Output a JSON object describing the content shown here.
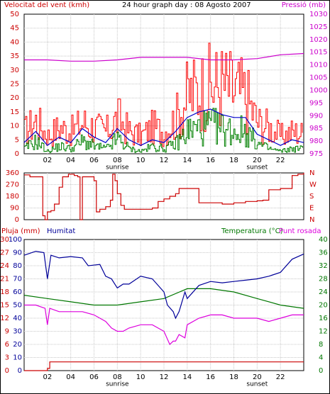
{
  "chart_data": [
    {
      "type": "line",
      "panel": "wind-pressure",
      "title": "24 hour graph day : 08 Agosto 2007",
      "left_axis_title": "Velocitat del vent (kmh)",
      "right_axis_title": "Pressió (mb)",
      "ylim_left": [
        0,
        50
      ],
      "ylim_right": [
        975,
        1030
      ],
      "yticks_left": [
        "0",
        "5",
        "10",
        "15",
        "20",
        "25",
        "30",
        "35",
        "40",
        "45",
        "50"
      ],
      "yticks_right": [
        "975",
        "980",
        "985",
        "990",
        "995",
        "1000",
        "1005",
        "1010",
        "1015",
        "1020",
        "1025",
        "1030"
      ],
      "xlim": [
        0,
        24
      ],
      "xticks": [
        "02",
        "04",
        "06",
        "08",
        "10",
        "12",
        "14",
        "16",
        "18",
        "20",
        "22"
      ],
      "markers": [
        "sunrise",
        "sunset"
      ],
      "grid": true,
      "colors": {
        "gust": "#ff0000",
        "average": "#0000cc",
        "wind": "#008000",
        "pressure": "#cc00cc"
      },
      "series": [
        {
          "name": "",
          "axis": "right",
          "x": [
            0,
            2,
            4,
            6,
            8,
            10,
            12,
            14,
            16,
            18,
            20,
            22,
            24
          ],
          "y": [
            1012,
            1012,
            1011.5,
            1011.5,
            1012,
            1013,
            1013,
            1013,
            1012,
            1012,
            1012.5,
            1014,
            1014.5
          ]
        },
        {
          "name": "",
          "axis": "left",
          "x": [
            0,
            1,
            2,
            3,
            4,
            5,
            6,
            7,
            8,
            9,
            10,
            11,
            12,
            13,
            14,
            15,
            16,
            17,
            18,
            19,
            20,
            21,
            22,
            23,
            24
          ],
          "y": [
            10,
            15,
            8,
            12,
            10,
            14,
            12,
            10,
            16,
            10,
            8,
            12,
            10,
            16,
            26,
            29,
            30,
            31,
            28,
            26,
            14,
            12,
            8,
            10,
            9
          ]
        },
        {
          "name": "",
          "axis": "left",
          "x": [
            0,
            1,
            2,
            3,
            4,
            5,
            6,
            7,
            8,
            9,
            10,
            11,
            12,
            13,
            14,
            15,
            16,
            17,
            18,
            19,
            20,
            21,
            22,
            23,
            24
          ],
          "y": [
            4,
            8,
            3,
            6,
            4,
            9,
            6,
            4,
            9,
            5,
            3,
            5,
            4,
            8,
            13,
            15,
            16,
            14,
            13,
            13,
            7,
            5,
            3,
            5,
            4
          ]
        },
        {
          "name": "",
          "axis": "left",
          "x": [
            0,
            1,
            2,
            3,
            4,
            5,
            6,
            7,
            8,
            9,
            10,
            11,
            12,
            13,
            14,
            15,
            16,
            17,
            18,
            19,
            20,
            21,
            22,
            23,
            24
          ],
          "y": [
            2,
            5,
            1,
            3,
            2,
            5,
            3,
            2,
            6,
            2,
            1,
            3,
            2,
            4,
            9,
            10,
            11,
            10,
            9,
            9,
            4,
            2,
            1,
            2,
            2
          ]
        }
      ]
    },
    {
      "type": "line",
      "panel": "wind-direction",
      "ylim": [
        0,
        360
      ],
      "yticks_left": [
        "0",
        "90",
        "180",
        "270",
        "360"
      ],
      "yticks_right": [
        "N",
        "E",
        "S",
        "W",
        "N"
      ],
      "xlim": [
        0,
        24
      ],
      "grid": true,
      "colors": {
        "direction": "#cc0000"
      },
      "series": [
        {
          "name": "",
          "x": [
            0,
            0.5,
            1,
            1.6,
            1.8,
            2,
            2.3,
            2.6,
            3,
            3.3,
            3.8,
            4.3,
            4.6,
            4.8,
            5,
            5.5,
            6,
            6.2,
            6.5,
            7,
            7.4,
            7.6,
            7.8,
            8,
            8.3,
            8.6,
            9,
            10,
            11,
            11.5,
            12,
            12.5,
            13,
            13.3,
            14,
            15,
            16,
            17,
            18,
            19,
            20,
            20.5,
            21,
            22,
            23,
            23.5,
            24
          ],
          "y": [
            345,
            330,
            330,
            30,
            0,
            60,
            70,
            120,
            250,
            330,
            350,
            340,
            330,
            0,
            330,
            330,
            300,
            60,
            80,
            100,
            150,
            350,
            300,
            200,
            110,
            80,
            80,
            80,
            90,
            140,
            160,
            180,
            200,
            240,
            240,
            130,
            130,
            120,
            130,
            140,
            145,
            150,
            230,
            240,
            340,
            350,
            360
          ]
        }
      ]
    },
    {
      "type": "line",
      "panel": "rain-humidity-temperature",
      "left_axis_title": "Pluja (mm)",
      "humidity_title": "Humitat",
      "right_axis_title": "Temperatura (°C)",
      "dewpoint_title": "Punt rosada",
      "ylim_rain": [
        0,
        30
      ],
      "ylim_humidity": [
        0,
        100
      ],
      "ylim_temperature": [
        0,
        40
      ],
      "yticks_rain": [
        "0",
        "3",
        "6",
        "9",
        "12",
        "15",
        "18",
        "21",
        "24",
        "27",
        "30"
      ],
      "yticks_humidity": [
        "0",
        "10",
        "20",
        "30",
        "40",
        "50",
        "60",
        "70",
        "80",
        "90",
        "100"
      ],
      "yticks_temperature": [
        "0",
        "2",
        "4",
        "6",
        "8",
        "10",
        "12",
        "14",
        "16",
        "18",
        "20",
        "22",
        "24",
        "26",
        "28",
        "30",
        "32",
        "34",
        "36",
        "38",
        "40"
      ],
      "xlim": [
        0,
        24
      ],
      "xticks": [
        "02",
        "04",
        "06",
        "08",
        "10",
        "12",
        "14",
        "16",
        "18",
        "20",
        "22"
      ],
      "markers": [
        "sunrise",
        "sunset"
      ],
      "grid": true,
      "colors": {
        "rain": "#cc0000",
        "humidity": "#000099",
        "temperature": "#007700",
        "dewpoint": "#dd00dd"
      },
      "series": [
        {
          "name": "",
          "axis": "rain",
          "x": [
            0,
            1.5,
            2.0,
            2.2,
            4.0,
            8.0,
            12.0,
            16.0,
            20.0,
            24.0
          ],
          "y": [
            0,
            0,
            0.5,
            2.0,
            2.0,
            2.0,
            2.0,
            2.0,
            2.0,
            2.0
          ]
        },
        {
          "name": "",
          "axis": "humidity",
          "x": [
            0,
            1,
            1.7,
            2,
            2.3,
            3,
            4,
            5,
            5.5,
            6.5,
            7,
            7.5,
            8,
            8.5,
            9,
            10,
            11,
            12,
            12.3,
            12.8,
            13,
            13.3,
            13.8,
            14,
            15,
            16,
            17,
            18,
            19,
            20,
            21,
            22,
            23,
            24
          ],
          "y": [
            88,
            91,
            90,
            70,
            88,
            86,
            87,
            86,
            80,
            81,
            72,
            70,
            63,
            66,
            66,
            72,
            70,
            60,
            50,
            45,
            40,
            45,
            60,
            55,
            65,
            68,
            67,
            68,
            69,
            70,
            72,
            75,
            85,
            89
          ]
        },
        {
          "name": "",
          "axis": "temperature",
          "x": [
            0,
            2,
            4,
            6,
            8,
            10,
            12,
            14,
            16,
            18,
            20,
            22,
            24
          ],
          "y": [
            23,
            22,
            21,
            20,
            20,
            21,
            22,
            25,
            25,
            24,
            22,
            20,
            19
          ]
        },
        {
          "name": "",
          "axis": "temperature",
          "x": [
            0,
            1,
            1.8,
            2,
            2.2,
            3,
            4,
            5,
            6,
            7,
            7.5,
            8,
            8.5,
            9,
            10,
            11,
            12,
            12.5,
            12.8,
            13,
            13.3,
            13.8,
            14,
            15,
            16,
            17,
            18,
            19,
            20,
            21,
            22,
            23,
            24
          ],
          "y": [
            20,
            20,
            19,
            14,
            19,
            18,
            18,
            18,
            17,
            15,
            13,
            12,
            12,
            13,
            14,
            14,
            12,
            8,
            9,
            9,
            11,
            10,
            14,
            16,
            17,
            17,
            16,
            16,
            16,
            15,
            16,
            17,
            17
          ]
        }
      ]
    }
  ]
}
